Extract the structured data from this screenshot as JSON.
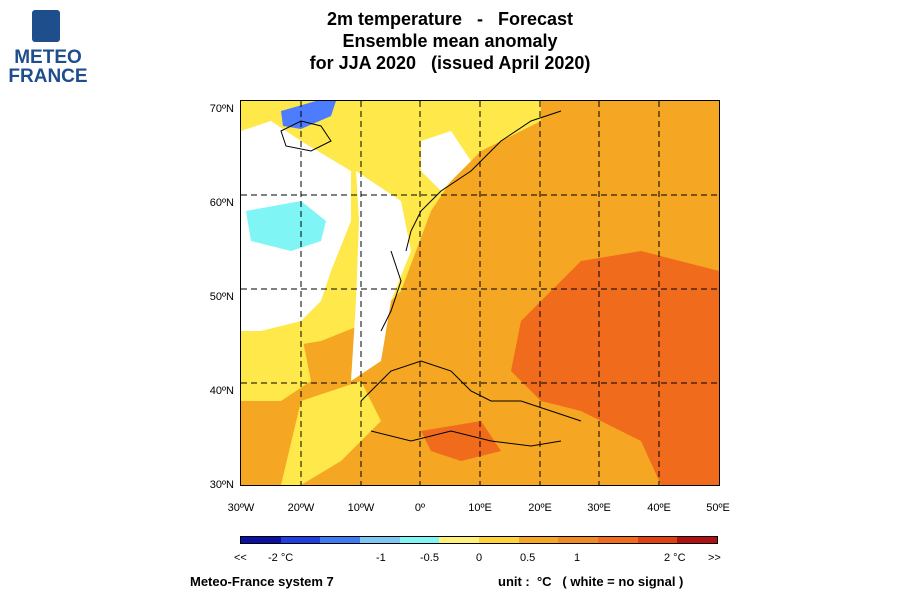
{
  "logo": {
    "line1": "METEO",
    "line2": "FRANCE"
  },
  "title": {
    "line1": "2m temperature   -   Forecast",
    "line2": "Ensemble mean anomaly",
    "line3": "for JJA 2020   (issued April 2020)"
  },
  "map": {
    "lat_labels": [
      "70ºN",
      "60ºN",
      "50ºN",
      "40ºN",
      "30ºN"
    ],
    "lon_labels": [
      "30ºW",
      "20ºW",
      "10ºW",
      "0º",
      "10ºE",
      "20ºE",
      "30ºE",
      "40ºE",
      "50ºE"
    ],
    "colors": {
      "light_yellow": "#ffe84a",
      "orange": "#f5a623",
      "dark_orange": "#f06b1b",
      "cyan": "#7ff5f5",
      "blue": "#4d7cff",
      "white": "#ffffff"
    }
  },
  "colorbar": {
    "segment_colors": [
      "#0c10a0",
      "#1f3fe0",
      "#3d7cf0",
      "#7fc6f5",
      "#7ff5f5",
      "#fff07a",
      "#ffd43a",
      "#f5a623",
      "#f08a24",
      "#f06b1b",
      "#e04010",
      "#b01010"
    ],
    "labels": [
      "<<",
      "-2 °C",
      "-1",
      "-0.5",
      "0",
      "0.5",
      "1",
      "2 °C",
      ">>"
    ]
  },
  "footer": {
    "source": "Meteo-France system 7",
    "unit": "unit :  °C   ( white = no signal )"
  }
}
